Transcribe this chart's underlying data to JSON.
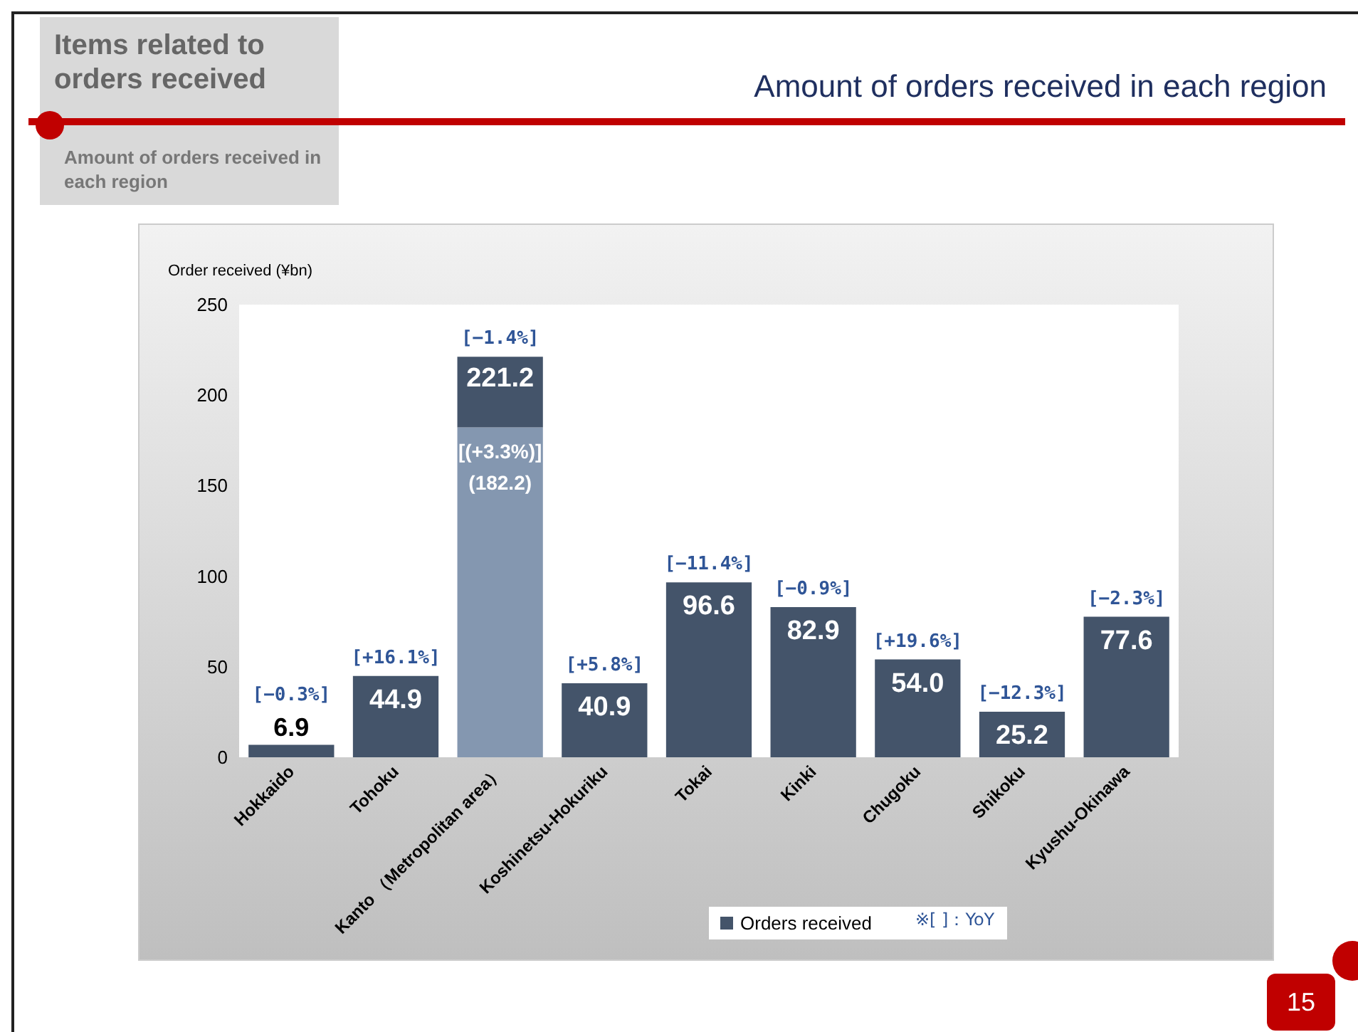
{
  "chart_data": {
    "type": "bar",
    "title": "Amount of orders received in each region",
    "subtitle": "Items related to orders received",
    "ylabel": "Order received (¥bn)",
    "categories": [
      "Hokkaido",
      "Tohoku",
      "Kanto （Metropolitan area）",
      "Koshinetsu-Hokuriku",
      "Tokai",
      "Kinki",
      "Chugoku",
      "Shikoku",
      "Kyushu-Okinawa"
    ],
    "stacked": true,
    "series": [
      {
        "color": "#8497b0",
        "values": [
          null,
          null,
          182.2,
          null,
          null,
          null,
          null,
          null,
          null
        ],
        "value_labels": [
          null,
          null,
          "[(+3.3%)]\n(182.2)",
          null,
          null,
          null,
          null,
          null,
          null
        ]
      },
      {
        "name": "Orders received",
        "color": "#44546a",
        "values": [
          6.9,
          44.9,
          39.0,
          40.9,
          96.6,
          82.9,
          54.0,
          25.2,
          77.6
        ],
        "value_labels": [
          "6.9",
          "44.9",
          null,
          "40.9",
          "96.6",
          "82.9",
          "54.0",
          "25.2",
          "77.6"
        ]
      }
    ],
    "totals": [
      null,
      null,
      "221.2",
      null,
      null,
      null,
      null,
      null,
      null
    ],
    "ylim": [
      0,
      250
    ],
    "yticks": [
      0,
      50,
      100,
      150,
      200,
      250
    ],
    "grid": false,
    "legend": "bottom",
    "annotations": [
      {
        "text": "[−0.3%]",
        "x": "Hokkaido",
        "y": 6.9
      },
      {
        "text": "[+16.1%]",
        "x": "Tohoku",
        "y": 44.9
      },
      {
        "text": "[−1.4%]",
        "x": "Kanto （Metropolitan area）",
        "y": 221.2
      },
      {
        "text": "[+5.8%]",
        "x": "Koshinetsu-Hokuriku",
        "y": 40.9
      },
      {
        "text": "[−11.4%]",
        "x": "Tokai",
        "y": 96.6
      },
      {
        "text": "[−0.9%]",
        "x": "Kinki",
        "y": 82.9
      },
      {
        "text": "[+19.6%]",
        "x": "Chugoku",
        "y": 54.0
      },
      {
        "text": "[−12.3%]",
        "x": "Shikoku",
        "y": 25.2
      },
      {
        "text": "[−2.3%]",
        "x": "Kyushu-Okinawa",
        "y": 77.6
      },
      "※[ ]：YoY",
      "Amount of orders received in each region",
      "15"
    ]
  }
}
